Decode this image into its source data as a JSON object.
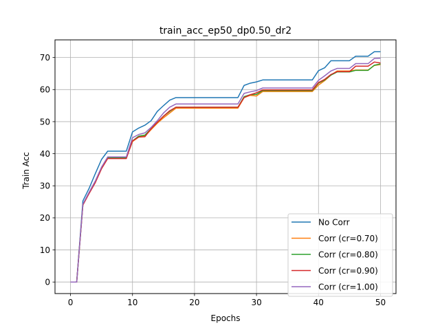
{
  "chart_data": {
    "type": "line",
    "title": "train_acc_ep50_dp0.50_dr2",
    "xlabel": "Epochs",
    "ylabel": "Train Acc",
    "xlim": [
      -2.5,
      52.5
    ],
    "ylim": [
      -3.6,
      75.5
    ],
    "xticks": [
      0,
      10,
      20,
      30,
      40,
      50
    ],
    "yticks": [
      0,
      10,
      20,
      30,
      40,
      50,
      60,
      70
    ],
    "grid": true,
    "legend_position": "lower-right",
    "x": [
      0,
      1,
      2,
      3,
      4,
      5,
      6,
      7,
      8,
      9,
      10,
      11,
      12,
      13,
      14,
      15,
      16,
      17,
      18,
      19,
      20,
      21,
      22,
      23,
      24,
      25,
      26,
      27,
      28,
      29,
      30,
      31,
      32,
      33,
      34,
      35,
      36,
      37,
      38,
      39,
      40,
      41,
      42,
      43,
      44,
      45,
      46,
      47,
      48,
      49,
      50
    ],
    "series": [
      {
        "name": "No Corr",
        "color": "#1f77b4",
        "values": [
          0,
          0,
          25.3,
          29.2,
          33.8,
          38.2,
          40.8,
          40.8,
          40.8,
          40.8,
          46.8,
          48,
          48.9,
          50.3,
          53.2,
          55,
          56.7,
          57.5,
          57.5,
          57.5,
          57.5,
          57.5,
          57.5,
          57.5,
          57.5,
          57.5,
          57.5,
          57.5,
          61.3,
          62,
          62.4,
          63,
          63,
          63,
          63,
          63,
          63,
          63,
          63,
          63,
          65.9,
          66.8,
          69,
          69,
          69,
          69,
          70.4,
          70.4,
          70.4,
          71.8,
          71.8
        ]
      },
      {
        "name": "Corr (cr=0.70)",
        "color": "#ff7f0e",
        "values": [
          0,
          0,
          24.2,
          27.8,
          31.3,
          35.5,
          38.8,
          38.8,
          38.8,
          38.8,
          43.8,
          45.2,
          45.5,
          47.5,
          49.5,
          51.2,
          52.7,
          54.2,
          54.2,
          54.2,
          54.2,
          54.2,
          54.2,
          54.2,
          54.2,
          54.2,
          54.2,
          54.2,
          57.5,
          58.2,
          58,
          59.4,
          59.4,
          59.4,
          59.4,
          59.4,
          59.4,
          59.4,
          59.4,
          59.4,
          61.4,
          62.8,
          64.5,
          65.8,
          65.8,
          65.8,
          66.1,
          66.1,
          66.1,
          67.5,
          67.8
        ]
      },
      {
        "name": "Corr (cr=0.80)",
        "color": "#2ca02c",
        "values": [
          0,
          0,
          24.2,
          27.8,
          31.3,
          35.5,
          38.8,
          38.8,
          38.8,
          38.8,
          44,
          45.5,
          45.8,
          47.8,
          49.8,
          51.7,
          53.2,
          54.5,
          54.5,
          54.5,
          54.5,
          54.5,
          54.5,
          54.5,
          54.5,
          54.5,
          54.5,
          54.5,
          57.8,
          58.4,
          58.5,
          59.7,
          59.7,
          59.7,
          59.7,
          59.7,
          59.7,
          59.7,
          59.7,
          59.7,
          62,
          63,
          64.5,
          65.5,
          65.5,
          65.5,
          66,
          66,
          66,
          67.6,
          68
        ]
      },
      {
        "name": "Corr (cr=0.90)",
        "color": "#d62728",
        "values": [
          0,
          0,
          24,
          27.6,
          31,
          35.3,
          38.5,
          38.5,
          38.5,
          38.5,
          44,
          45.2,
          45.3,
          47.8,
          49.8,
          51.7,
          53.4,
          54.5,
          54.5,
          54.5,
          54.5,
          54.5,
          54.5,
          54.5,
          54.5,
          54.5,
          54.5,
          54.5,
          57.5,
          58.4,
          59,
          59.9,
          59.9,
          59.9,
          59.9,
          59.9,
          59.9,
          59.9,
          59.9,
          59.9,
          62.2,
          63.2,
          64.7,
          65.6,
          65.6,
          65.6,
          67.3,
          67.3,
          67.3,
          68.6,
          68.3
        ]
      },
      {
        "name": "Corr (cr=1.00)",
        "color": "#9467bd",
        "values": [
          0,
          0,
          24.3,
          28,
          31.5,
          35.8,
          39,
          39,
          39,
          39,
          45,
          46,
          46.5,
          48.2,
          50.3,
          52.7,
          54.5,
          55.5,
          55.5,
          55.5,
          55.5,
          55.5,
          55.5,
          55.5,
          55.5,
          55.5,
          55.5,
          55.5,
          58.8,
          59.3,
          59.7,
          60.5,
          60.5,
          60.5,
          60.5,
          60.5,
          60.5,
          60.5,
          60.5,
          60.5,
          62.9,
          64.3,
          65.8,
          66.6,
          66.6,
          66.6,
          68.1,
          68.1,
          68.1,
          69.7,
          69.8
        ]
      }
    ]
  }
}
